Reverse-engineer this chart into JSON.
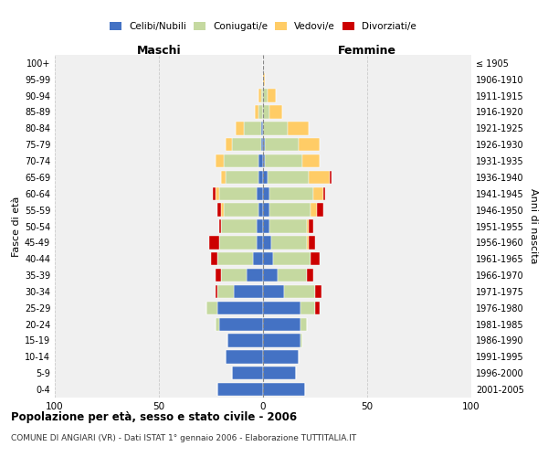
{
  "age_groups": [
    "0-4",
    "5-9",
    "10-14",
    "15-19",
    "20-24",
    "25-29",
    "30-34",
    "35-39",
    "40-44",
    "45-49",
    "50-54",
    "55-59",
    "60-64",
    "65-69",
    "70-74",
    "75-79",
    "80-84",
    "85-89",
    "90-94",
    "95-99",
    "100+"
  ],
  "birth_years": [
    "2001-2005",
    "1996-2000",
    "1991-1995",
    "1986-1990",
    "1981-1985",
    "1976-1980",
    "1971-1975",
    "1966-1970",
    "1961-1965",
    "1956-1960",
    "1951-1955",
    "1946-1950",
    "1941-1945",
    "1936-1940",
    "1931-1935",
    "1926-1930",
    "1921-1925",
    "1916-1920",
    "1911-1915",
    "1906-1910",
    "≤ 1905"
  ],
  "male_celibe": [
    22,
    15,
    18,
    17,
    21,
    22,
    14,
    8,
    5,
    3,
    3,
    2,
    3,
    2,
    2,
    1,
    1,
    0,
    0,
    0,
    0
  ],
  "male_coniugato": [
    0,
    0,
    0,
    0,
    2,
    5,
    8,
    12,
    17,
    18,
    17,
    17,
    18,
    16,
    17,
    14,
    8,
    2,
    1,
    0,
    0
  ],
  "male_vedovo": [
    0,
    0,
    0,
    0,
    0,
    0,
    0,
    0,
    0,
    0,
    0,
    1,
    2,
    2,
    4,
    3,
    4,
    2,
    1,
    0,
    0
  ],
  "male_divorziato": [
    0,
    0,
    0,
    0,
    0,
    0,
    1,
    3,
    3,
    5,
    1,
    2,
    1,
    0,
    0,
    0,
    0,
    0,
    0,
    0,
    0
  ],
  "female_celibe": [
    20,
    16,
    17,
    18,
    18,
    18,
    10,
    7,
    5,
    4,
    3,
    3,
    3,
    2,
    1,
    1,
    0,
    0,
    0,
    0,
    0
  ],
  "female_coniugato": [
    0,
    0,
    0,
    1,
    3,
    7,
    15,
    14,
    18,
    17,
    18,
    20,
    21,
    20,
    18,
    16,
    12,
    3,
    2,
    0,
    0
  ],
  "female_vedovo": [
    0,
    0,
    0,
    0,
    0,
    0,
    0,
    0,
    0,
    1,
    1,
    3,
    5,
    10,
    8,
    10,
    10,
    6,
    4,
    1,
    0
  ],
  "female_divorziato": [
    0,
    0,
    0,
    0,
    0,
    2,
    3,
    3,
    4,
    3,
    2,
    3,
    1,
    1,
    0,
    0,
    0,
    0,
    0,
    0,
    0
  ],
  "colors": {
    "celibe": "#4472C4",
    "coniugato": "#C5D9A0",
    "vedovo": "#FFCC66",
    "divorziato": "#CC0000"
  },
  "xlim": [
    -100,
    100
  ],
  "xticks": [
    -100,
    -50,
    0,
    50,
    100
  ],
  "xticklabels": [
    "100",
    "50",
    "0",
    "50",
    "100"
  ],
  "title": "Popolazione per età, sesso e stato civile - 2006",
  "subtitle": "COMUNE DI ANGIARI (VR) - Dati ISTAT 1° gennaio 2006 - Elaborazione TUTTITALIA.IT",
  "ylabel_left": "Fasce di età",
  "ylabel_right": "Anni di nascita",
  "maschi_label": "Maschi",
  "femmine_label": "Femmine",
  "legend_labels": [
    "Celibi/Nubili",
    "Coniugati/e",
    "Vedovi/e",
    "Divorziati/e"
  ],
  "background_color": "#ffffff",
  "plot_bg_color": "#f0f0f0",
  "grid_color": "#cccccc"
}
